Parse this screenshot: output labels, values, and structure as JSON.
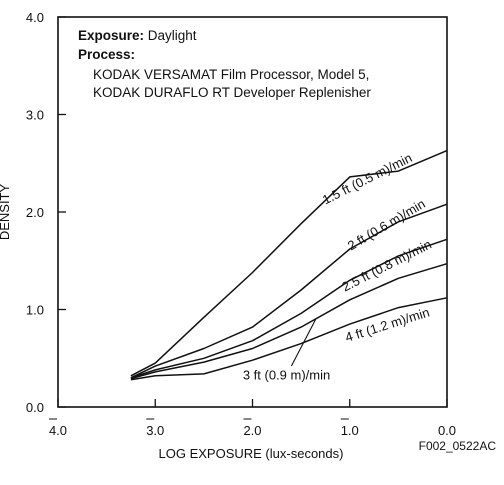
{
  "chart_data": {
    "type": "line",
    "xlabel": "LOG EXPOSURE (lux-seconds)",
    "ylabel": "DENSITY",
    "xlim": [
      -4.0,
      0.0
    ],
    "ylim": [
      0.0,
      4.0
    ],
    "x_ticks": [
      -4.0,
      -3.0,
      -2.0,
      -1.0,
      0.0
    ],
    "x_tick_labels": [
      "4.0",
      "3.0",
      "2.0",
      "1.0",
      "0.0"
    ],
    "x_tick_bars": [
      true,
      true,
      true,
      true,
      false
    ],
    "y_ticks": [
      0.0,
      1.0,
      2.0,
      3.0,
      4.0
    ],
    "y_tick_labels": [
      "0.0",
      "1.0",
      "2.0",
      "3.0",
      "4.0"
    ],
    "grid": false,
    "legend": "none",
    "info": {
      "exposure_label": "Exposure:",
      "exposure_value": " Daylight",
      "process_label": "Process:",
      "process_line1": "KODAK VERSAMAT Film Processor, Model 5,",
      "process_line2": "KODAK DURAFLO RT Developer Replenisher"
    },
    "code": "F002_0522AC",
    "series": [
      {
        "name": "1.5 ft (0.5 m)/min",
        "x": [
          -3.25,
          -3.0,
          -2.5,
          -2.0,
          -1.5,
          -1.0,
          -0.5,
          0.0
        ],
        "y": [
          0.32,
          0.45,
          0.92,
          1.38,
          1.88,
          2.36,
          2.42,
          2.63
        ]
      },
      {
        "name": "2 ft (0.6 m)/min",
        "x": [
          -3.25,
          -3.0,
          -2.5,
          -2.0,
          -1.5,
          -1.0,
          -0.5,
          0.0
        ],
        "y": [
          0.3,
          0.42,
          0.6,
          0.82,
          1.2,
          1.62,
          1.9,
          2.08
        ]
      },
      {
        "name": "2.5 ft (0.8 m)/min",
        "x": [
          -3.25,
          -3.0,
          -2.5,
          -2.0,
          -1.5,
          -1.0,
          -0.5,
          0.0
        ],
        "y": [
          0.3,
          0.38,
          0.5,
          0.68,
          0.96,
          1.3,
          1.55,
          1.72
        ]
      },
      {
        "name": "3 ft (0.9 m)/min",
        "x": [
          -3.25,
          -3.0,
          -2.5,
          -2.0,
          -1.5,
          -1.0,
          -0.5,
          0.0
        ],
        "y": [
          0.29,
          0.36,
          0.46,
          0.6,
          0.82,
          1.1,
          1.32,
          1.47
        ]
      },
      {
        "name": "4 ft (1.2 m)/min",
        "x": [
          -3.25,
          -3.0,
          -2.5,
          -2.0,
          -1.5,
          -1.0,
          -0.5,
          0.0
        ],
        "y": [
          0.28,
          0.32,
          0.34,
          0.48,
          0.65,
          0.85,
          1.02,
          1.12
        ]
      }
    ]
  }
}
